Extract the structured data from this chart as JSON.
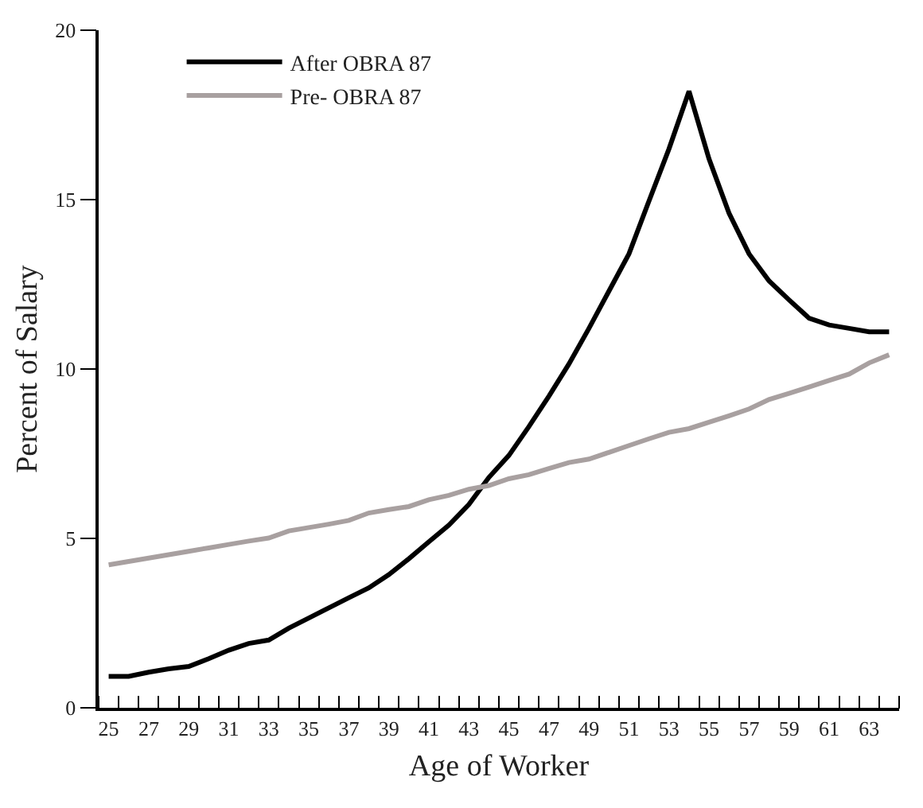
{
  "chart_data": {
    "type": "line",
    "xlabel": "Age of Worker",
    "ylabel": "Percent of Salary",
    "x": [
      25,
      26,
      27,
      28,
      29,
      30,
      31,
      32,
      33,
      34,
      35,
      36,
      37,
      38,
      39,
      40,
      41,
      42,
      43,
      44,
      45,
      46,
      47,
      48,
      49,
      50,
      51,
      52,
      53,
      54,
      55,
      56,
      57,
      58,
      59,
      60,
      61,
      62,
      63,
      64
    ],
    "series": [
      {
        "name": "After OBRA 87",
        "color": "#000000",
        "values": [
          0.93,
          0.93,
          1.05,
          1.15,
          1.22,
          1.45,
          1.7,
          1.9,
          2.0,
          2.35,
          2.65,
          2.95,
          3.25,
          3.54,
          3.93,
          4.4,
          4.9,
          5.39,
          6.0,
          6.8,
          7.45,
          8.3,
          9.2,
          10.15,
          11.2,
          12.3,
          13.4,
          14.96,
          16.5,
          18.2,
          16.2,
          14.6,
          13.4,
          12.6,
          12.04,
          11.5,
          11.3,
          11.2,
          11.1,
          11.1
        ]
      },
      {
        "name": "Pre- OBRA 87",
        "color": "#a8a0a0",
        "values": [
          4.22,
          4.32,
          4.42,
          4.52,
          4.62,
          4.72,
          4.82,
          4.92,
          5.01,
          5.22,
          5.32,
          5.42,
          5.53,
          5.75,
          5.85,
          5.94,
          6.14,
          6.27,
          6.45,
          6.56,
          6.76,
          6.88,
          7.06,
          7.24,
          7.34,
          7.54,
          7.74,
          7.94,
          8.13,
          8.24,
          8.43,
          8.62,
          8.82,
          9.1,
          9.28,
          9.47,
          9.66,
          9.85,
          10.18,
          10.42
        ]
      }
    ],
    "xlim": [
      24.5,
      64.5
    ],
    "xticks": [
      {
        "value": 24.5,
        "label": null
      },
      25,
      {
        "value": 25.5,
        "label": null
      },
      {
        "value": 26.5,
        "label": null
      },
      27,
      {
        "value": 27.5,
        "label": null
      },
      {
        "value": 28.5,
        "label": null
      },
      29,
      {
        "value": 29.5,
        "label": null
      },
      {
        "value": 30.5,
        "label": null
      },
      31,
      {
        "value": 31.5,
        "label": null
      },
      {
        "value": 32.5,
        "label": null
      },
      33,
      {
        "value": 33.5,
        "label": null
      },
      {
        "value": 34.5,
        "label": null
      },
      35,
      {
        "value": 35.5,
        "label": null
      },
      {
        "value": 36.5,
        "label": null
      },
      37,
      {
        "value": 37.5,
        "label": null
      },
      {
        "value": 38.5,
        "label": null
      },
      39,
      {
        "value": 39.5,
        "label": null
      },
      {
        "value": 40.5,
        "label": null
      },
      41,
      {
        "value": 41.5,
        "label": null
      },
      {
        "value": 42.5,
        "label": null
      },
      43,
      {
        "value": 43.5,
        "label": null
      },
      {
        "value": 44.5,
        "label": null
      },
      45,
      {
        "value": 45.5,
        "label": null
      },
      {
        "value": 46.5,
        "label": null
      },
      47,
      {
        "value": 47.5,
        "label": null
      },
      {
        "value": 48.5,
        "label": null
      },
      49,
      {
        "value": 49.5,
        "label": null
      },
      {
        "value": 50.5,
        "label": null
      },
      51,
      {
        "value": 51.5,
        "label": null
      },
      {
        "value": 52.5,
        "label": null
      },
      53,
      {
        "value": 53.5,
        "label": null
      },
      {
        "value": 54.5,
        "label": null
      },
      55,
      {
        "value": 55.5,
        "label": null
      },
      {
        "value": 56.5,
        "label": null
      },
      57,
      {
        "value": 57.5,
        "label": null
      },
      {
        "value": 58.5,
        "label": null
      },
      59,
      {
        "value": 59.5,
        "label": null
      },
      {
        "value": 60.5,
        "label": null
      },
      61,
      {
        "value": 61.5,
        "label": null
      },
      {
        "value": 62.5,
        "label": null
      },
      63,
      {
        "value": 63.5,
        "label": null
      },
      {
        "value": 64.5,
        "label": null
      }
    ],
    "ylim": [
      0,
      20
    ],
    "yticks": [
      0,
      5,
      10,
      15,
      20
    ],
    "legend": "top left",
    "marker": "none",
    "line_style": "solid"
  }
}
